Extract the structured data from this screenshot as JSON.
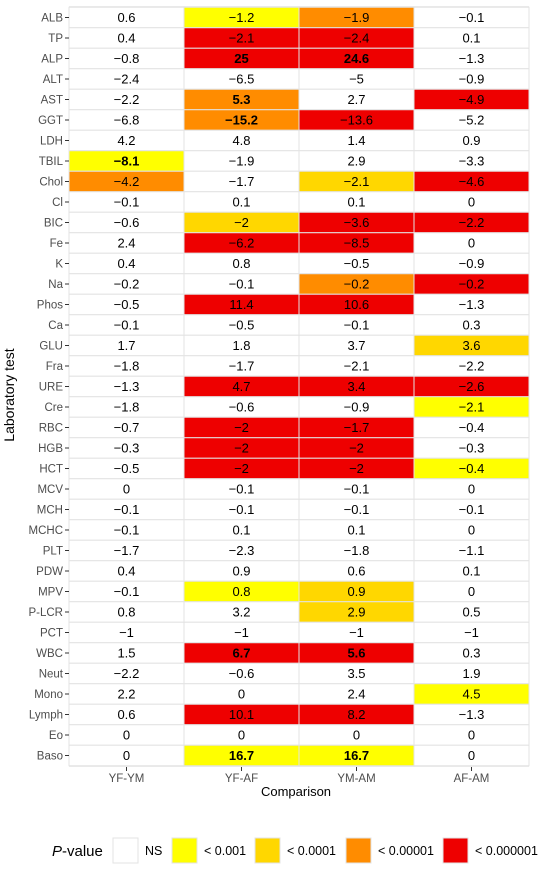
{
  "chart_data": {
    "type": "heatmap",
    "title": "",
    "xlabel": "Comparison",
    "ylabel": "Laboratory test",
    "x": [
      "YF-YM",
      "YF-AF",
      "YM-AM",
      "AF-AM"
    ],
    "y": [
      "ALB",
      "TP",
      "ALP",
      "ALT",
      "AST",
      "GGT",
      "LDH",
      "TBIL",
      "Chol",
      "Cl",
      "BIC",
      "Fe",
      "K",
      "Na",
      "Phos",
      "Ca",
      "GLU",
      "Fra",
      "URE",
      "Cre",
      "RBC",
      "HGB",
      "HCT",
      "MCV",
      "MCH",
      "MCHC",
      "PLT",
      "PDW",
      "MPV",
      "P-LCR",
      "PCT",
      "WBC",
      "Neut",
      "Mono",
      "Lymph",
      "Eo",
      "Baso"
    ],
    "values": [
      [
        "0.6",
        "−1.2",
        "−1.9",
        "−0.1"
      ],
      [
        "0.4",
        "−2.1",
        "−2.4",
        "0.1"
      ],
      [
        "−0.8",
        "25",
        "24.6",
        "−1.3"
      ],
      [
        "−2.4",
        "−6.5",
        "−5",
        "−0.9"
      ],
      [
        "−2.2",
        "5.3",
        "2.7",
        "−4.9"
      ],
      [
        "−6.8",
        "−15.2",
        "−13.6",
        "−5.2"
      ],
      [
        "4.2",
        "4.8",
        "1.4",
        "0.9"
      ],
      [
        "−8.1",
        "−1.9",
        "2.9",
        "−3.3"
      ],
      [
        "−4.2",
        "−1.7",
        "−2.1",
        "−4.6"
      ],
      [
        "−0.1",
        "0.1",
        "0.1",
        "0"
      ],
      [
        "−0.6",
        "−2",
        "−3.6",
        "−2.2"
      ],
      [
        "2.4",
        "−6.2",
        "−8.5",
        "0"
      ],
      [
        "0.4",
        "0.8",
        "−0.5",
        "−0.9"
      ],
      [
        "−0.2",
        "−0.1",
        "−0.2",
        "−0.2"
      ],
      [
        "−0.5",
        "11.4",
        "10.6",
        "−1.3"
      ],
      [
        "−0.1",
        "−0.5",
        "−0.1",
        "0.3"
      ],
      [
        "1.7",
        "1.8",
        "3.7",
        "3.6"
      ],
      [
        "−1.8",
        "−1.7",
        "−2.1",
        "−2.2"
      ],
      [
        "−1.3",
        "4.7",
        "3.4",
        "−2.6"
      ],
      [
        "−1.8",
        "−0.6",
        "−0.9",
        "−2.1"
      ],
      [
        "−0.7",
        "−2",
        "−1.7",
        "−0.4"
      ],
      [
        "−0.3",
        "−2",
        "−2",
        "−0.3"
      ],
      [
        "−0.5",
        "−2",
        "−2",
        "−0.4"
      ],
      [
        "0",
        "−0.1",
        "−0.1",
        "0"
      ],
      [
        "−0.1",
        "−0.1",
        "−0.1",
        "−0.1"
      ],
      [
        "−0.1",
        "0.1",
        "0.1",
        "0"
      ],
      [
        "−1.7",
        "−2.3",
        "−1.8",
        "−1.1"
      ],
      [
        "0.4",
        "0.9",
        "0.6",
        "0.1"
      ],
      [
        "−0.1",
        "0.8",
        "0.9",
        "0"
      ],
      [
        "0.8",
        "3.2",
        "2.9",
        "0.5"
      ],
      [
        "−1",
        "−1",
        "−1",
        "−1"
      ],
      [
        "1.5",
        "6.7",
        "5.6",
        "0.3"
      ],
      [
        "−2.2",
        "−0.6",
        "3.5",
        "1.9"
      ],
      [
        "2.2",
        "0",
        "2.4",
        "4.5"
      ],
      [
        "0.6",
        "10.1",
        "8.2",
        "−1.3"
      ],
      [
        "0",
        "0",
        "0",
        "0"
      ],
      [
        "0",
        "16.7",
        "16.7",
        "0"
      ]
    ],
    "levels": [
      [
        0,
        1,
        3,
        0
      ],
      [
        0,
        4,
        4,
        0
      ],
      [
        0,
        4,
        4,
        0
      ],
      [
        0,
        0,
        0,
        0
      ],
      [
        0,
        3,
        0,
        4
      ],
      [
        0,
        3,
        4,
        0
      ],
      [
        0,
        0,
        0,
        0
      ],
      [
        1,
        0,
        0,
        0
      ],
      [
        3,
        0,
        2,
        4
      ],
      [
        0,
        0,
        0,
        0
      ],
      [
        0,
        2,
        4,
        4
      ],
      [
        0,
        4,
        4,
        0
      ],
      [
        0,
        0,
        0,
        0
      ],
      [
        0,
        0,
        3,
        4
      ],
      [
        0,
        4,
        4,
        0
      ],
      [
        0,
        0,
        0,
        0
      ],
      [
        0,
        0,
        0,
        2
      ],
      [
        0,
        0,
        0,
        0
      ],
      [
        0,
        4,
        4,
        4
      ],
      [
        0,
        0,
        0,
        1
      ],
      [
        0,
        4,
        4,
        0
      ],
      [
        0,
        4,
        4,
        0
      ],
      [
        0,
        4,
        4,
        1
      ],
      [
        0,
        0,
        0,
        0
      ],
      [
        0,
        0,
        0,
        0
      ],
      [
        0,
        0,
        0,
        0
      ],
      [
        0,
        0,
        0,
        0
      ],
      [
        0,
        0,
        0,
        0
      ],
      [
        0,
        1,
        2,
        0
      ],
      [
        0,
        0,
        2,
        0
      ],
      [
        0,
        0,
        0,
        0
      ],
      [
        0,
        4,
        4,
        0
      ],
      [
        0,
        0,
        0,
        0
      ],
      [
        0,
        0,
        0,
        1
      ],
      [
        0,
        4,
        4,
        0
      ],
      [
        0,
        0,
        0,
        0
      ],
      [
        0,
        1,
        1,
        0
      ]
    ],
    "bold": [
      [
        0,
        0,
        0,
        0
      ],
      [
        0,
        0,
        0,
        0
      ],
      [
        0,
        1,
        1,
        0
      ],
      [
        0,
        0,
        0,
        0
      ],
      [
        0,
        1,
        0,
        0
      ],
      [
        0,
        1,
        0,
        0
      ],
      [
        0,
        0,
        0,
        0
      ],
      [
        1,
        0,
        0,
        0
      ],
      [
        0,
        0,
        0,
        0
      ],
      [
        0,
        0,
        0,
        0
      ],
      [
        0,
        0,
        0,
        0
      ],
      [
        0,
        0,
        0,
        0
      ],
      [
        0,
        0,
        0,
        0
      ],
      [
        0,
        0,
        0,
        0
      ],
      [
        0,
        0,
        0,
        0
      ],
      [
        0,
        0,
        0,
        0
      ],
      [
        0,
        0,
        0,
        0
      ],
      [
        0,
        0,
        0,
        0
      ],
      [
        0,
        0,
        0,
        0
      ],
      [
        0,
        0,
        0,
        0
      ],
      [
        0,
        0,
        0,
        0
      ],
      [
        0,
        0,
        0,
        0
      ],
      [
        0,
        0,
        0,
        0
      ],
      [
        0,
        0,
        0,
        0
      ],
      [
        0,
        0,
        0,
        0
      ],
      [
        0,
        0,
        0,
        0
      ],
      [
        0,
        0,
        0,
        0
      ],
      [
        0,
        0,
        0,
        0
      ],
      [
        0,
        0,
        0,
        0
      ],
      [
        0,
        0,
        0,
        0
      ],
      [
        0,
        0,
        0,
        0
      ],
      [
        0,
        1,
        1,
        0
      ],
      [
        0,
        0,
        0,
        0
      ],
      [
        0,
        0,
        0,
        0
      ],
      [
        0,
        0,
        0,
        0
      ],
      [
        0,
        0,
        0,
        0
      ],
      [
        0,
        1,
        1,
        0
      ]
    ],
    "legend": {
      "title_italic": "P",
      "title_rest": "-value",
      "position": "bottom",
      "items": [
        {
          "label": "NS",
          "color": "#ffffff"
        },
        {
          "label": "< 0.001",
          "color": "#ffff00"
        },
        {
          "label": "< 0.0001",
          "color": "#ffd700"
        },
        {
          "label": "< 0.00001",
          "color": "#ff8c00"
        },
        {
          "label": "< 0.000001",
          "color": "#ee0000"
        }
      ]
    },
    "colors": {
      "panel_background": "#ebebeb",
      "cell_border": "#e3e3e3",
      "axis_text": "#4d4d4d",
      "title_text": "#000000"
    }
  }
}
